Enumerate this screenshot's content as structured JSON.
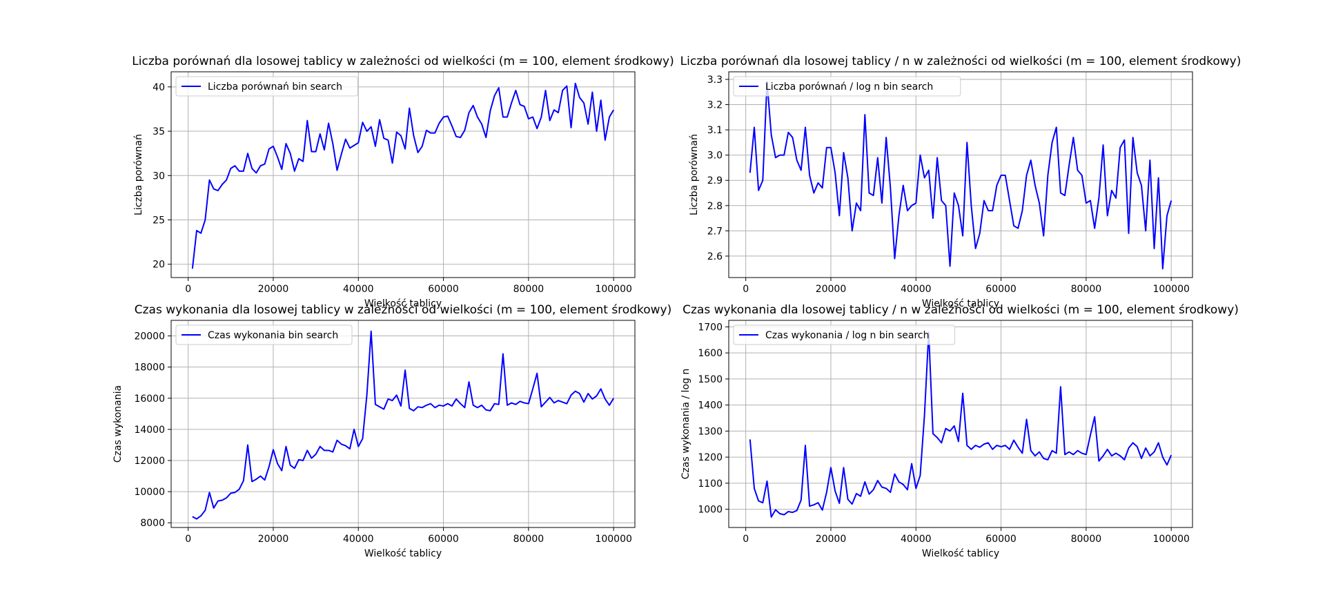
{
  "chart_data": [
    {
      "type": "line",
      "title": "Liczba porównań dla losowej tablicy w zależności od wielkości (m = 100, element środkowy)",
      "xlabel": "Wielkość tablicy",
      "ylabel": "Liczba porównań",
      "xlim": [
        -4000,
        105000
      ],
      "ylim": [
        18.5,
        41.7
      ],
      "xticks": [
        0,
        20000,
        40000,
        60000,
        80000,
        100000
      ],
      "yticks": [
        20,
        25,
        30,
        35,
        40
      ],
      "grid": true,
      "legend_position": "top-left",
      "series": [
        {
          "name": "Liczba porównań bin search",
          "color": "#0000ff",
          "x": [
            1000,
            2000,
            3000,
            4000,
            5000,
            6000,
            7000,
            8000,
            9000,
            10000,
            11000,
            12000,
            13000,
            14000,
            15000,
            16000,
            17000,
            18000,
            19000,
            20000,
            21000,
            22000,
            23000,
            24000,
            25000,
            26000,
            27000,
            28000,
            29000,
            30000,
            31000,
            32000,
            33000,
            34000,
            35000,
            36000,
            37000,
            38000,
            39000,
            40000,
            41000,
            42000,
            43000,
            44000,
            45000,
            46000,
            47000,
            48000,
            49000,
            50000,
            51000,
            52000,
            53000,
            54000,
            55000,
            56000,
            57000,
            58000,
            59000,
            60000,
            61000,
            62000,
            63000,
            64000,
            65000,
            66000,
            67000,
            68000,
            69000,
            70000,
            71000,
            72000,
            73000,
            74000,
            75000,
            76000,
            77000,
            78000,
            79000,
            80000,
            81000,
            82000,
            83000,
            84000,
            85000,
            86000,
            87000,
            88000,
            89000,
            90000,
            91000,
            92000,
            93000,
            94000,
            95000,
            96000,
            97000,
            98000,
            99000,
            100000
          ],
          "y": [
            19.5,
            23.8,
            23.5,
            25.0,
            29.5,
            28.5,
            28.3,
            29.0,
            29.5,
            30.8,
            31.1,
            30.5,
            30.5,
            32.5,
            30.8,
            30.3,
            31.1,
            31.3,
            33.0,
            33.3,
            32.1,
            30.7,
            33.6,
            32.5,
            30.5,
            31.9,
            31.6,
            36.2,
            32.7,
            32.7,
            34.7,
            32.9,
            35.9,
            33.6,
            30.6,
            32.4,
            34.1,
            33.1,
            33.4,
            33.7,
            36.0,
            35.0,
            35.5,
            33.3,
            36.3,
            34.2,
            34.0,
            31.4,
            34.9,
            34.5,
            33.0,
            37.6,
            34.5,
            32.6,
            33.3,
            35.1,
            34.8,
            34.8,
            35.9,
            36.6,
            36.7,
            35.6,
            34.4,
            34.3,
            35.1,
            37.1,
            37.9,
            36.6,
            35.8,
            34.3,
            37.3,
            39.0,
            39.9,
            36.6,
            36.6,
            38.2,
            39.6,
            38.0,
            37.8,
            36.4,
            36.6,
            35.3,
            36.6,
            39.6,
            36.2,
            37.4,
            37.1,
            39.6,
            40.1,
            35.4,
            40.4,
            38.8,
            38.2,
            35.8,
            39.4,
            35.0,
            38.5,
            34.0,
            36.6,
            37.4
          ]
        }
      ]
    },
    {
      "type": "line",
      "title": "Liczba porównań dla losowej tablicy / n w zależności od wielkości (m = 100, element środkowy)",
      "xlabel": "Wielkość tablicy",
      "ylabel": "Liczba porównań",
      "xlim": [
        -4000,
        105000
      ],
      "ylim": [
        2.515,
        3.33
      ],
      "xticks": [
        0,
        20000,
        40000,
        60000,
        80000,
        100000
      ],
      "yticks": [
        2.6,
        2.7,
        2.8,
        2.9,
        3.0,
        3.1,
        3.2,
        3.3
      ],
      "grid": true,
      "legend_position": "top-left",
      "series": [
        {
          "name": "Liczba porównań / log n bin search",
          "color": "#0000ff",
          "x": [
            1000,
            2000,
            3000,
            4000,
            5000,
            6000,
            7000,
            8000,
            9000,
            10000,
            11000,
            12000,
            13000,
            14000,
            15000,
            16000,
            17000,
            18000,
            19000,
            20000,
            21000,
            22000,
            23000,
            24000,
            25000,
            26000,
            27000,
            28000,
            29000,
            30000,
            31000,
            32000,
            33000,
            34000,
            35000,
            36000,
            37000,
            38000,
            39000,
            40000,
            41000,
            42000,
            43000,
            44000,
            45000,
            46000,
            47000,
            48000,
            49000,
            50000,
            51000,
            52000,
            53000,
            54000,
            55000,
            56000,
            57000,
            58000,
            59000,
            60000,
            61000,
            62000,
            63000,
            64000,
            65000,
            66000,
            67000,
            68000,
            69000,
            70000,
            71000,
            72000,
            73000,
            74000,
            75000,
            76000,
            77000,
            78000,
            79000,
            80000,
            81000,
            82000,
            83000,
            84000,
            85000,
            86000,
            87000,
            88000,
            89000,
            90000,
            91000,
            92000,
            93000,
            94000,
            95000,
            96000,
            97000,
            98000,
            99000,
            100000
          ],
          "y": [
            2.93,
            3.11,
            2.86,
            2.9,
            3.29,
            3.08,
            2.99,
            3.0,
            3.0,
            3.09,
            3.07,
            2.98,
            2.94,
            3.11,
            2.92,
            2.85,
            2.89,
            2.87,
            3.03,
            3.03,
            2.93,
            2.76,
            3.01,
            2.91,
            2.7,
            2.81,
            2.78,
            3.16,
            2.85,
            2.84,
            2.99,
            2.81,
            3.07,
            2.87,
            2.59,
            2.76,
            2.88,
            2.78,
            2.8,
            2.81,
            3.0,
            2.91,
            2.94,
            2.75,
            2.99,
            2.82,
            2.8,
            2.56,
            2.85,
            2.8,
            2.68,
            3.05,
            2.8,
            2.63,
            2.69,
            2.82,
            2.78,
            2.78,
            2.88,
            2.92,
            2.92,
            2.82,
            2.72,
            2.71,
            2.78,
            2.92,
            2.98,
            2.88,
            2.81,
            2.68,
            2.92,
            3.05,
            3.11,
            2.85,
            2.84,
            2.96,
            3.07,
            2.94,
            2.92,
            2.81,
            2.82,
            2.71,
            2.83,
            3.04,
            2.76,
            2.86,
            2.83,
            3.03,
            3.06,
            2.69,
            3.07,
            2.93,
            2.88,
            2.7,
            2.98,
            2.63,
            2.91,
            2.55,
            2.76,
            2.82
          ]
        }
      ]
    },
    {
      "type": "line",
      "title": "Czas wykonania dla losowej tablicy w zależności od wielkości (m = 100, element środkowy)",
      "xlabel": "Wielkość tablicy",
      "ylabel": "Czas wykonania",
      "xlim": [
        -4000,
        105000
      ],
      "ylim": [
        7700,
        21000
      ],
      "xticks": [
        0,
        20000,
        40000,
        60000,
        80000,
        100000
      ],
      "yticks": [
        8000,
        10000,
        12000,
        14000,
        16000,
        18000,
        20000
      ],
      "grid": true,
      "legend_position": "top-left",
      "series": [
        {
          "name": "Czas wykonania bin search",
          "color": "#0000ff",
          "x": [
            1000,
            2000,
            3000,
            4000,
            5000,
            6000,
            7000,
            8000,
            9000,
            10000,
            11000,
            12000,
            13000,
            14000,
            15000,
            16000,
            17000,
            18000,
            19000,
            20000,
            21000,
            22000,
            23000,
            24000,
            25000,
            26000,
            27000,
            28000,
            29000,
            30000,
            31000,
            32000,
            33000,
            34000,
            35000,
            36000,
            37000,
            38000,
            39000,
            40000,
            41000,
            42000,
            43000,
            44000,
            45000,
            46000,
            47000,
            48000,
            49000,
            50000,
            51000,
            52000,
            53000,
            54000,
            55000,
            56000,
            57000,
            58000,
            59000,
            60000,
            61000,
            62000,
            63000,
            64000,
            65000,
            66000,
            67000,
            68000,
            69000,
            70000,
            71000,
            72000,
            73000,
            74000,
            75000,
            76000,
            77000,
            78000,
            79000,
            80000,
            81000,
            82000,
            83000,
            84000,
            85000,
            86000,
            87000,
            88000,
            89000,
            90000,
            91000,
            92000,
            93000,
            94000,
            95000,
            96000,
            97000,
            98000,
            99000,
            100000
          ],
          "y": [
            8400,
            8250,
            8450,
            8800,
            9950,
            8950,
            9400,
            9450,
            9600,
            9900,
            9950,
            10150,
            10700,
            13000,
            10650,
            10800,
            11000,
            10750,
            11600,
            12700,
            11800,
            11350,
            12900,
            11700,
            11500,
            12050,
            12000,
            12650,
            12150,
            12400,
            12900,
            12650,
            12650,
            12550,
            13300,
            13050,
            12950,
            12750,
            14000,
            12900,
            13400,
            16200,
            20300,
            15600,
            15450,
            15300,
            15950,
            15850,
            16200,
            15500,
            17800,
            15350,
            15200,
            15450,
            15400,
            15550,
            15650,
            15400,
            15550,
            15500,
            15650,
            15500,
            15950,
            15650,
            15400,
            17050,
            15550,
            15400,
            15550,
            15250,
            15200,
            15650,
            15600,
            18850,
            15550,
            15700,
            15600,
            15800,
            15700,
            15650,
            16600,
            17600,
            15450,
            15750,
            16050,
            15700,
            15850,
            15750,
            15650,
            16200,
            16450,
            16300,
            15750,
            16300,
            15950,
            16150,
            16600,
            15950,
            15550,
            16000
          ]
        }
      ]
    },
    {
      "type": "line",
      "title": "Czas wykonania dla losowej tablicy / n w zależności od wielkości (m = 100, element środkowy)",
      "xlabel": "Wielkość tablicy",
      "ylabel": "Czas wykonania / log n",
      "xlim": [
        -4000,
        105000
      ],
      "ylim": [
        930,
        1725
      ],
      "xticks": [
        0,
        20000,
        40000,
        60000,
        80000,
        100000
      ],
      "yticks": [
        1000,
        1100,
        1200,
        1300,
        1400,
        1500,
        1600,
        1700
      ],
      "grid": true,
      "legend_position": "top-left",
      "series": [
        {
          "name": "Czas wykonania / log n bin search",
          "color": "#0000ff",
          "x": [
            1000,
            2000,
            3000,
            4000,
            5000,
            6000,
            7000,
            8000,
            9000,
            10000,
            11000,
            12000,
            13000,
            14000,
            15000,
            16000,
            17000,
            18000,
            19000,
            20000,
            21000,
            22000,
            23000,
            24000,
            25000,
            26000,
            27000,
            28000,
            29000,
            30000,
            31000,
            32000,
            33000,
            34000,
            35000,
            36000,
            37000,
            38000,
            39000,
            40000,
            41000,
            42000,
            43000,
            44000,
            45000,
            46000,
            47000,
            48000,
            49000,
            50000,
            51000,
            52000,
            53000,
            54000,
            55000,
            56000,
            57000,
            58000,
            59000,
            60000,
            61000,
            62000,
            63000,
            64000,
            65000,
            66000,
            67000,
            68000,
            69000,
            70000,
            71000,
            72000,
            73000,
            74000,
            75000,
            76000,
            77000,
            78000,
            79000,
            80000,
            81000,
            82000,
            83000,
            84000,
            85000,
            86000,
            87000,
            88000,
            89000,
            90000,
            91000,
            92000,
            93000,
            94000,
            95000,
            96000,
            97000,
            98000,
            99000,
            100000
          ],
          "y": [
            1268,
            1080,
            1032,
            1025,
            1108,
            970,
            998,
            983,
            979,
            991,
            988,
            995,
            1035,
            1245,
            1012,
            1017,
            1025,
            997,
            1065,
            1160,
            1070,
            1023,
            1160,
            1038,
            1020,
            1060,
            1050,
            1105,
            1058,
            1075,
            1110,
            1085,
            1080,
            1065,
            1135,
            1105,
            1095,
            1075,
            1175,
            1080,
            1130,
            1360,
            1680,
            1290,
            1275,
            1255,
            1310,
            1300,
            1320,
            1260,
            1445,
            1245,
            1230,
            1245,
            1238,
            1250,
            1255,
            1230,
            1245,
            1240,
            1245,
            1230,
            1265,
            1238,
            1215,
            1345,
            1225,
            1205,
            1220,
            1195,
            1190,
            1225,
            1215,
            1470,
            1210,
            1220,
            1210,
            1225,
            1215,
            1210,
            1285,
            1355,
            1185,
            1205,
            1230,
            1205,
            1215,
            1205,
            1190,
            1235,
            1255,
            1240,
            1195,
            1235,
            1205,
            1220,
            1255,
            1200,
            1170,
            1208
          ]
        }
      ]
    }
  ]
}
